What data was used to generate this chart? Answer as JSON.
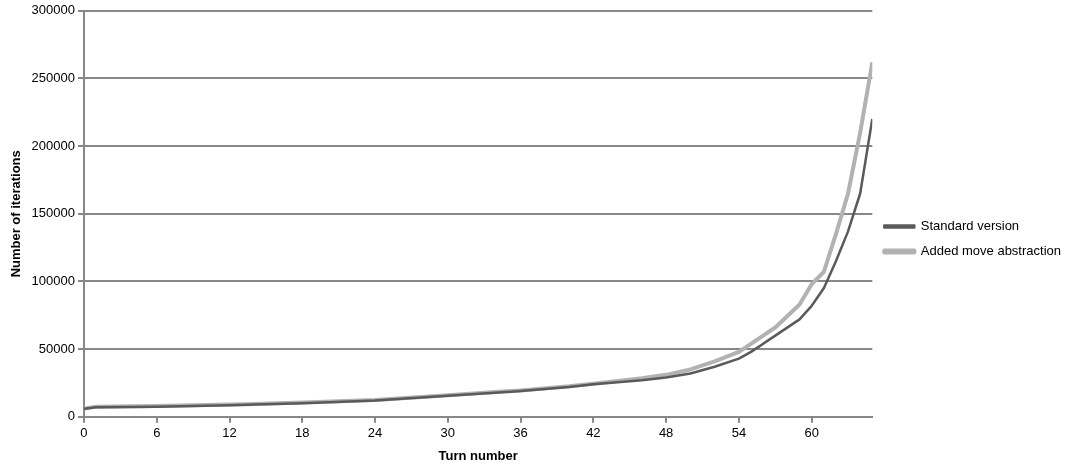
{
  "chart_data": {
    "type": "line",
    "xlabel": "Turn number",
    "ylabel": "Number of iterations",
    "xlim": [
      0,
      65
    ],
    "xticks": [
      0,
      6,
      12,
      18,
      24,
      30,
      36,
      42,
      48,
      54,
      60
    ],
    "ylim": [
      0,
      300000
    ],
    "yticks": [
      0,
      50000,
      100000,
      150000,
      200000,
      250000,
      300000
    ],
    "grid": "y",
    "legend": "right",
    "marker": "none",
    "series": [
      {
        "name": "Standard version",
        "color": "#5a5a5a",
        "x": [
          0,
          1,
          6,
          12,
          18,
          24,
          30,
          36,
          40,
          42,
          46,
          48,
          50,
          52,
          54,
          55,
          57,
          59,
          60,
          61,
          62,
          63,
          64,
          65
        ],
        "values": [
          6000,
          7000,
          7500,
          8500,
          10000,
          12000,
          15500,
          19000,
          22000,
          24000,
          27000,
          29000,
          32000,
          37000,
          43000,
          48000,
          60000,
          72000,
          82000,
          95000,
          115000,
          137000,
          165000,
          220000
        ]
      },
      {
        "name": "Added move abstraction",
        "color": "#b2b2b2",
        "x": [
          0,
          1,
          6,
          12,
          18,
          24,
          30,
          36,
          40,
          42,
          46,
          48,
          50,
          52,
          54,
          56,
          57,
          59,
          60,
          61,
          62,
          63,
          64,
          65
        ],
        "values": [
          6000,
          7500,
          8000,
          9000,
          10500,
          12500,
          16000,
          19500,
          22500,
          24500,
          28500,
          31000,
          35000,
          41000,
          48000,
          60000,
          66000,
          83000,
          98000,
          107000,
          135000,
          165000,
          210000,
          262000
        ]
      }
    ]
  }
}
